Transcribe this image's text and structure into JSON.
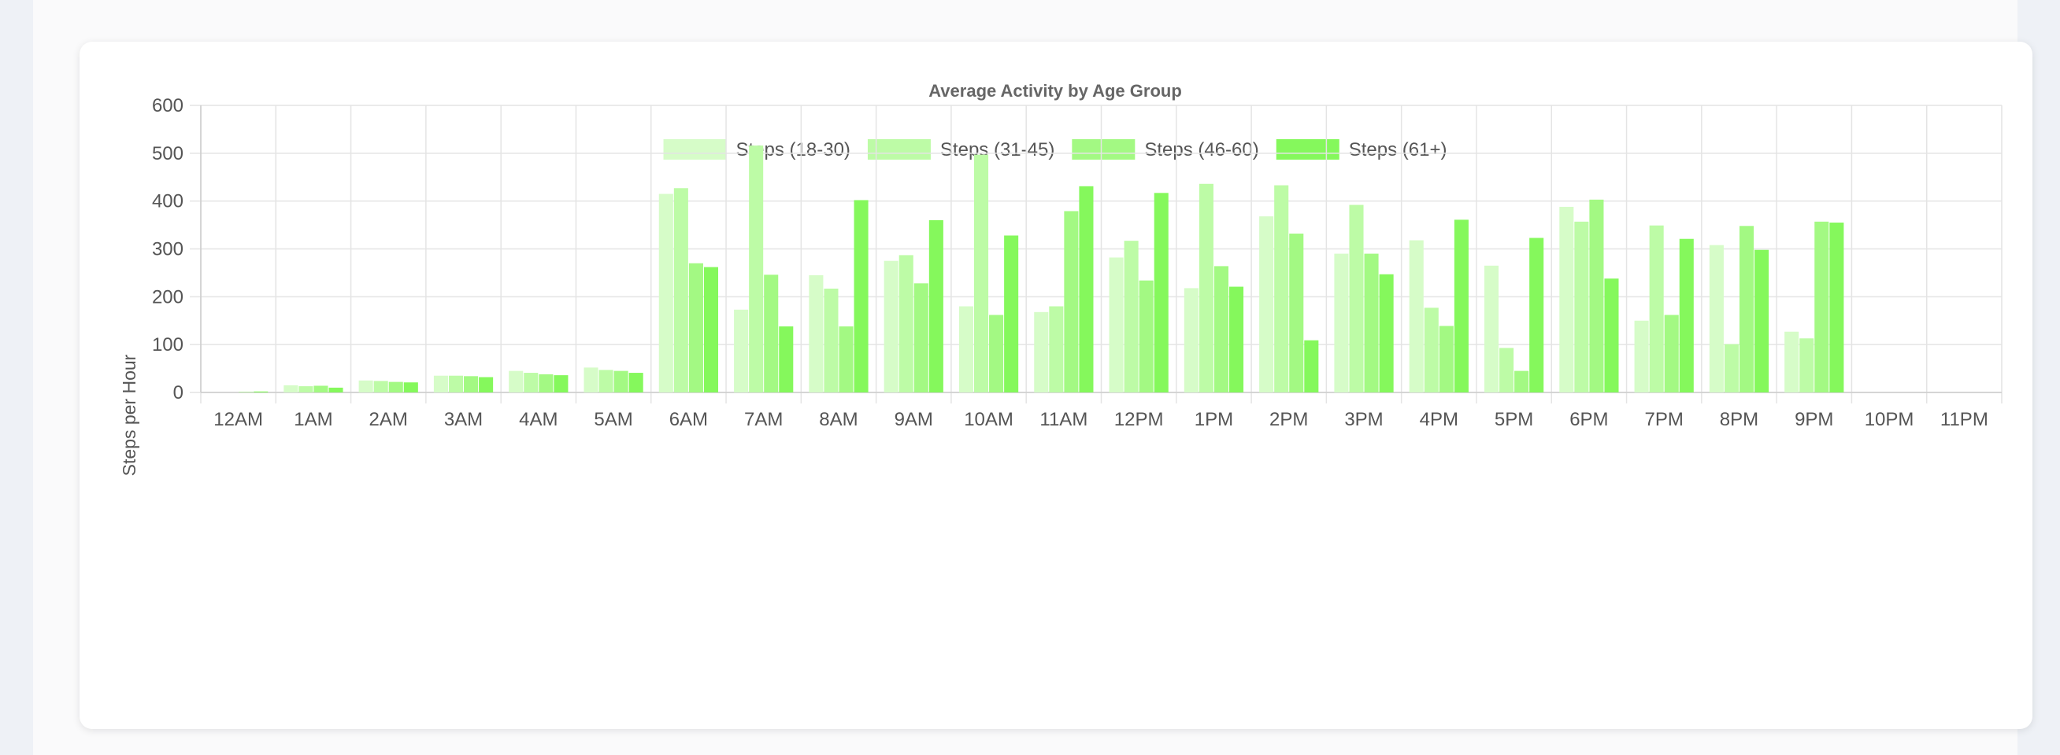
{
  "chart_data": {
    "type": "bar",
    "title": "Average Activity by Age Group",
    "ylabel": "Steps per Hour",
    "xlabel": "",
    "ylim": [
      0,
      600
    ],
    "yticks": [
      "0",
      "100",
      "200",
      "300",
      "400",
      "500",
      "600"
    ],
    "grid": true,
    "legend_position": "top-center",
    "categories": [
      "12AM",
      "1AM",
      "2AM",
      "3AM",
      "4AM",
      "5AM",
      "6AM",
      "7AM",
      "8AM",
      "9AM",
      "10AM",
      "11AM",
      "12PM",
      "1PM",
      "2PM",
      "3PM",
      "4PM",
      "5PM",
      "6PM",
      "7PM",
      "8PM",
      "9PM",
      "10PM",
      "11PM"
    ],
    "series": [
      {
        "name": "Steps (18-30)",
        "color": "#d6fcc8",
        "values": [
          0,
          15,
          25,
          35,
          45,
          52,
          415,
          173,
          245,
          275,
          180,
          168,
          282,
          218,
          368,
          290,
          318,
          265,
          388,
          150,
          308,
          127,
          0,
          0
        ]
      },
      {
        "name": "Steps (31-45)",
        "color": "#bdfba6",
        "values": [
          0,
          13,
          24,
          35,
          41,
          47,
          427,
          516,
          217,
          287,
          497,
          180,
          317,
          436,
          433,
          392,
          177,
          93,
          357,
          349,
          101,
          113,
          0,
          0
        ]
      },
      {
        "name": "Steps (46-60)",
        "color": "#a3f983",
        "values": [
          1,
          14,
          22,
          34,
          38,
          45,
          270,
          246,
          138,
          228,
          162,
          379,
          234,
          264,
          332,
          290,
          139,
          45,
          403,
          162,
          348,
          357,
          0,
          0
        ]
      },
      {
        "name": "Steps (61+)",
        "color": "#85f85c",
        "values": [
          2,
          10,
          21,
          32,
          36,
          41,
          262,
          138,
          402,
          360,
          328,
          431,
          417,
          221,
          109,
          247,
          361,
          323,
          238,
          321,
          298,
          355,
          0,
          0
        ]
      }
    ]
  }
}
